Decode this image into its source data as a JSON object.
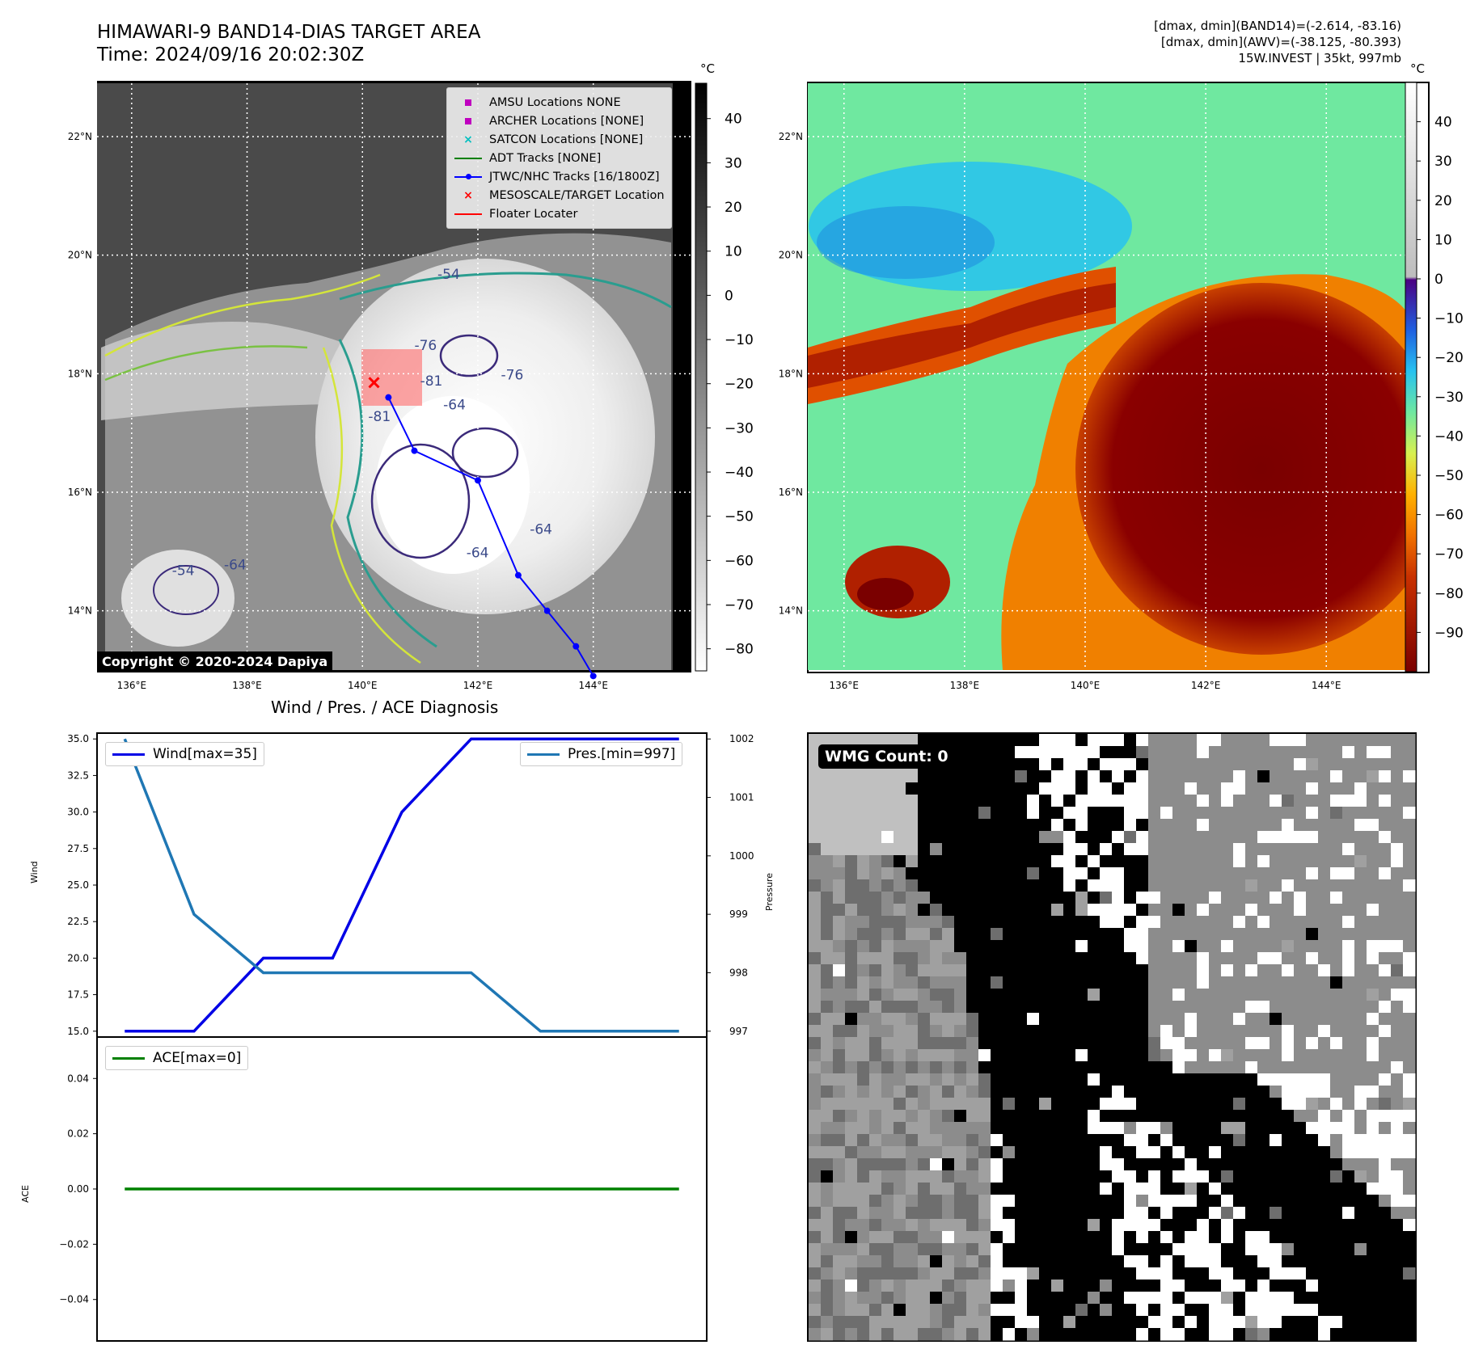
{
  "header": {
    "title_line1": "HIMAWARI-9 BAND14-DIAS TARGET AREA",
    "title_line2": "Time: 2024/09/16 20:02:30Z",
    "stat_line1": "[dmax, dmin](BAND14)=(-2.614, -83.16)",
    "stat_line2": "[dmax, dmin](AWV)=(-38.125, -80.393)",
    "stat_line3": "15W.INVEST | 35kt, 997mb"
  },
  "map": {
    "lat_labels": [
      "22°N",
      "20°N",
      "18°N",
      "16°N",
      "14°N"
    ],
    "lat_values": [
      22,
      20,
      18,
      16,
      14
    ],
    "lon_labels": [
      "136°E",
      "138°E",
      "140°E",
      "142°E",
      "144°E"
    ],
    "lon_values": [
      136,
      138,
      140,
      142,
      144
    ],
    "lon_range": [
      135.4,
      145.7
    ],
    "lat_range": [
      13.0,
      22.9
    ],
    "copyright": "Copyright © 2020-2024 Dapiya",
    "contour_labels": [
      "-76",
      "-76",
      "-81",
      "-64",
      "-64",
      "-54",
      "-54",
      "-64",
      "-81",
      "-64"
    ],
    "track": {
      "name": "JTWC/NHC Tracks [16/1800Z]",
      "lon": [
        140.45,
        140.9,
        142.0,
        142.7,
        143.2,
        143.7,
        144.0
      ],
      "lat": [
        17.6,
        16.7,
        16.2,
        14.6,
        14.0,
        13.4,
        12.9
      ]
    },
    "target": {
      "lon": 140.2,
      "lat": 17.85
    },
    "legend": [
      {
        "label": "AMSU Locations NONE",
        "symbol": "square",
        "color": "#bf00bf"
      },
      {
        "label": "ARCHER Locations [NONE]",
        "symbol": "square",
        "color": "#bf00bf"
      },
      {
        "label": "SATCON Locations [NONE]",
        "symbol": "x",
        "color": "#00bfbf"
      },
      {
        "label": "ADT Tracks [NONE]",
        "symbol": "line",
        "color": "#008000"
      },
      {
        "label": "JTWC/NHC Tracks [16/1800Z]",
        "symbol": "line-dot",
        "color": "#0000ff"
      },
      {
        "label": "MESOSCALE/TARGET Location",
        "symbol": "x",
        "color": "#ff0000"
      },
      {
        "label": "Floater Locater",
        "symbol": "line",
        "color": "#ff0000"
      }
    ]
  },
  "colorbar_gray": {
    "unit": "°C",
    "ticks": [
      "40",
      "30",
      "20",
      "10",
      "0",
      "−10",
      "−20",
      "−30",
      "−40",
      "−50",
      "−60",
      "−70",
      "−80"
    ],
    "tick_values": [
      40,
      30,
      20,
      10,
      0,
      -10,
      -20,
      -30,
      -40,
      -50,
      -60,
      -70,
      -80
    ],
    "range": [
      -85,
      48
    ]
  },
  "colorbar_color": {
    "unit": "°C",
    "ticks": [
      "40",
      "30",
      "20",
      "10",
      "0",
      "−10",
      "−20",
      "−30",
      "−40",
      "−50",
      "−60",
      "−70",
      "−80",
      "−90"
    ],
    "tick_values": [
      40,
      30,
      20,
      10,
      0,
      -10,
      -20,
      -30,
      -40,
      -50,
      -60,
      -70,
      -80,
      -90
    ],
    "range": [
      -100,
      50
    ]
  },
  "diagnosis": {
    "title": "Wind / Pres. / ACE Diagnosis",
    "wind_ylabel": "Wind",
    "pres_ylabel": "Pressure",
    "ace_ylabel": "ACE",
    "wind_ticks": [
      "35.0",
      "32.5",
      "30.0",
      "27.5",
      "25.0",
      "22.5",
      "20.0",
      "17.5",
      "15.0"
    ],
    "pres_ticks": [
      "1002",
      "1001",
      "1000",
      "999",
      "998",
      "997"
    ],
    "ace_ticks": [
      "0.04",
      "0.02",
      "0.00",
      "−0.02",
      "−0.04"
    ],
    "wind_legend": "Wind[max=35]",
    "pres_legend": "Pres.[min=997]",
    "ace_legend": "ACE[max=0]",
    "wind_color": "#0000e6",
    "pres_color": "#1f77b4",
    "ace_color": "#008000"
  },
  "chart_data": [
    {
      "type": "line",
      "title": "Wind / Pres. / ACE Diagnosis",
      "x": [
        0,
        1,
        2,
        3,
        4,
        5,
        6,
        7,
        8
      ],
      "series": [
        {
          "name": "Wind[max=35]",
          "axis": "left",
          "values": [
            15,
            15,
            20,
            20,
            30,
            35,
            35,
            35,
            35
          ]
        },
        {
          "name": "Pres.[min=997]",
          "axis": "right",
          "values": [
            1002,
            999,
            998,
            998,
            998,
            998,
            997,
            997,
            997
          ]
        }
      ],
      "ylabel": "Wind",
      "ylabel_right": "Pressure",
      "ylim": [
        14.6,
        35.4
      ],
      "ylim_right": [
        996.9,
        1002.1
      ]
    },
    {
      "type": "line",
      "x": [
        0,
        1,
        2,
        3,
        4,
        5,
        6,
        7,
        8
      ],
      "series": [
        {
          "name": "ACE[max=0]",
          "values": [
            0,
            0,
            0,
            0,
            0,
            0,
            0,
            0,
            0
          ]
        }
      ],
      "ylabel": "ACE",
      "ylim": [
        -0.055,
        0.055
      ]
    }
  ],
  "wmg": {
    "badge": "WMG Count: 0"
  }
}
